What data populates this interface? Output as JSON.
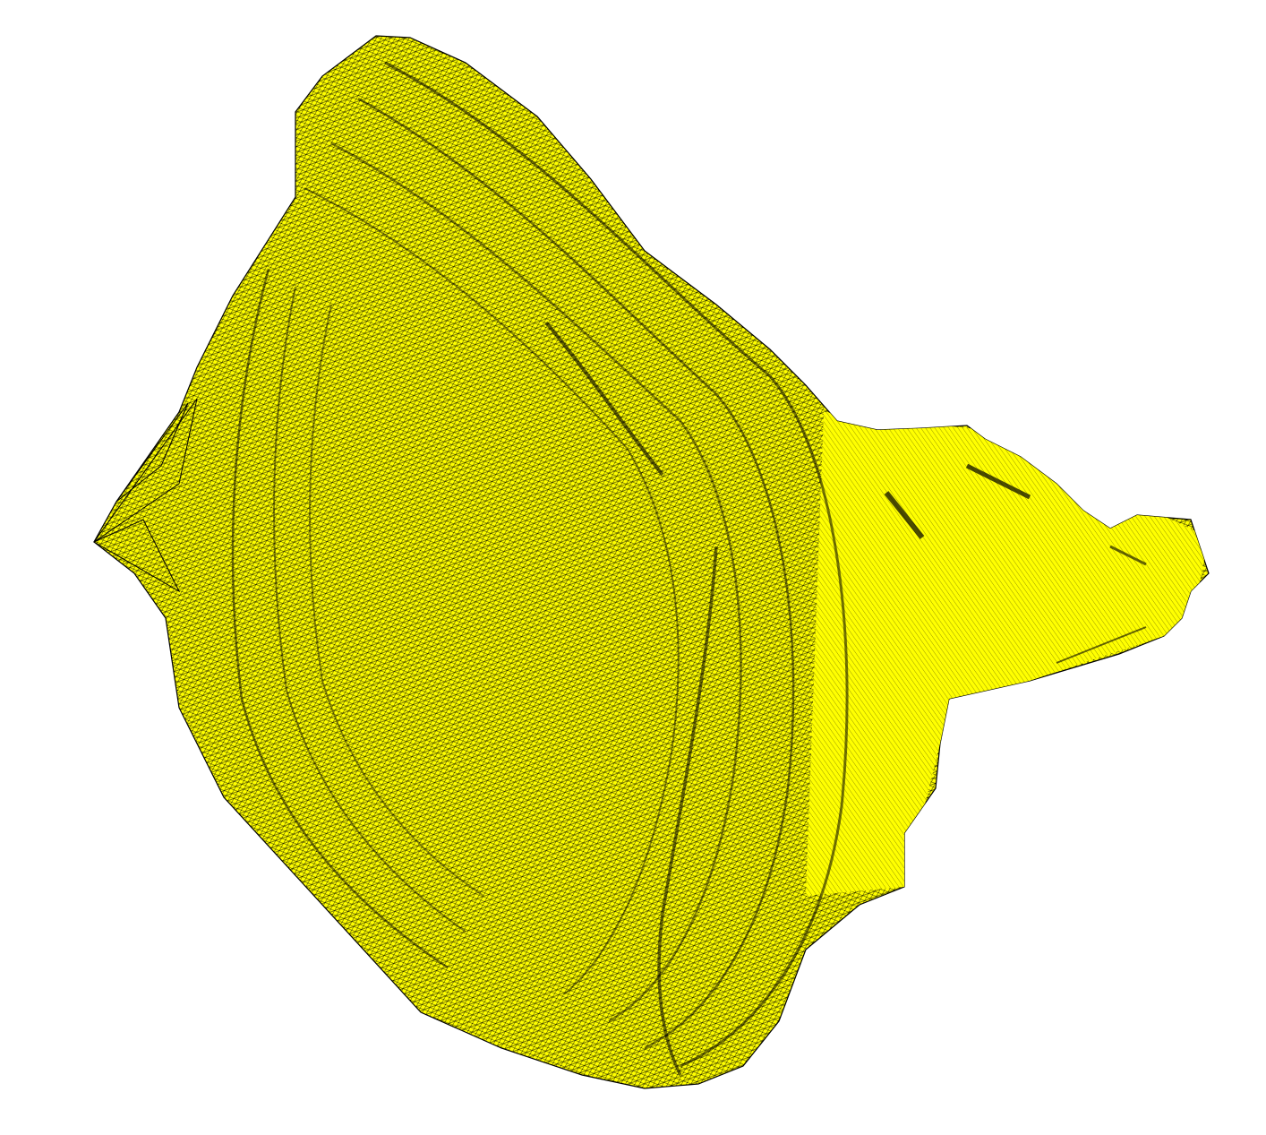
{
  "viewport": {
    "background": "#ffffff"
  },
  "mesh": {
    "vertex_color": "#ffff00",
    "edge_color": "#000000",
    "fill_color": "#ffff00",
    "style": "wireframe"
  }
}
